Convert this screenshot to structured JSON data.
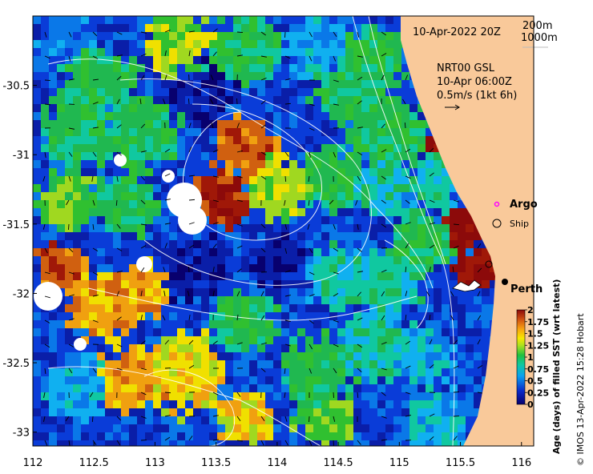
{
  "map": {
    "title": "10-Apr-2022 20Z",
    "bathy_legend": [
      "200m",
      "1000m"
    ],
    "current_info": [
      "NRT00 GSL",
      "10-Apr 06:00Z",
      "0.5m/s (1kt 6h)"
    ],
    "legend": {
      "argo": "Argo",
      "ship": "Ship"
    },
    "places": [
      {
        "name": "Perth",
        "lon": 115.86,
        "lat": -31.95
      }
    ],
    "x_ticks": [
      "112",
      "112.5",
      "113",
      "113.5",
      "114",
      "114.5",
      "115",
      "115.5",
      "116"
    ],
    "y_ticks": [
      "-30.5",
      "-31",
      "-31.5",
      "-32",
      "-32.5",
      "-33"
    ],
    "lon_range": [
      112,
      116.1
    ],
    "lat_range": [
      -33.1,
      -30.0
    ],
    "colors": {
      "land": "#f9c99a",
      "nodata": "#ffffff",
      "contour": "#ffffff",
      "argo": "#ff00ff"
    }
  },
  "colorbar": {
    "label": "Age (days) of filled SST (wrt latest)",
    "ticks": [
      "2",
      "1.75",
      "1.5",
      "1.25",
      "1",
      "0.75",
      "0.5",
      "0.25",
      "0"
    ],
    "range": [
      0,
      2
    ]
  },
  "credit": "© IMOS 13-Apr-2022 15:28 Hobart"
}
